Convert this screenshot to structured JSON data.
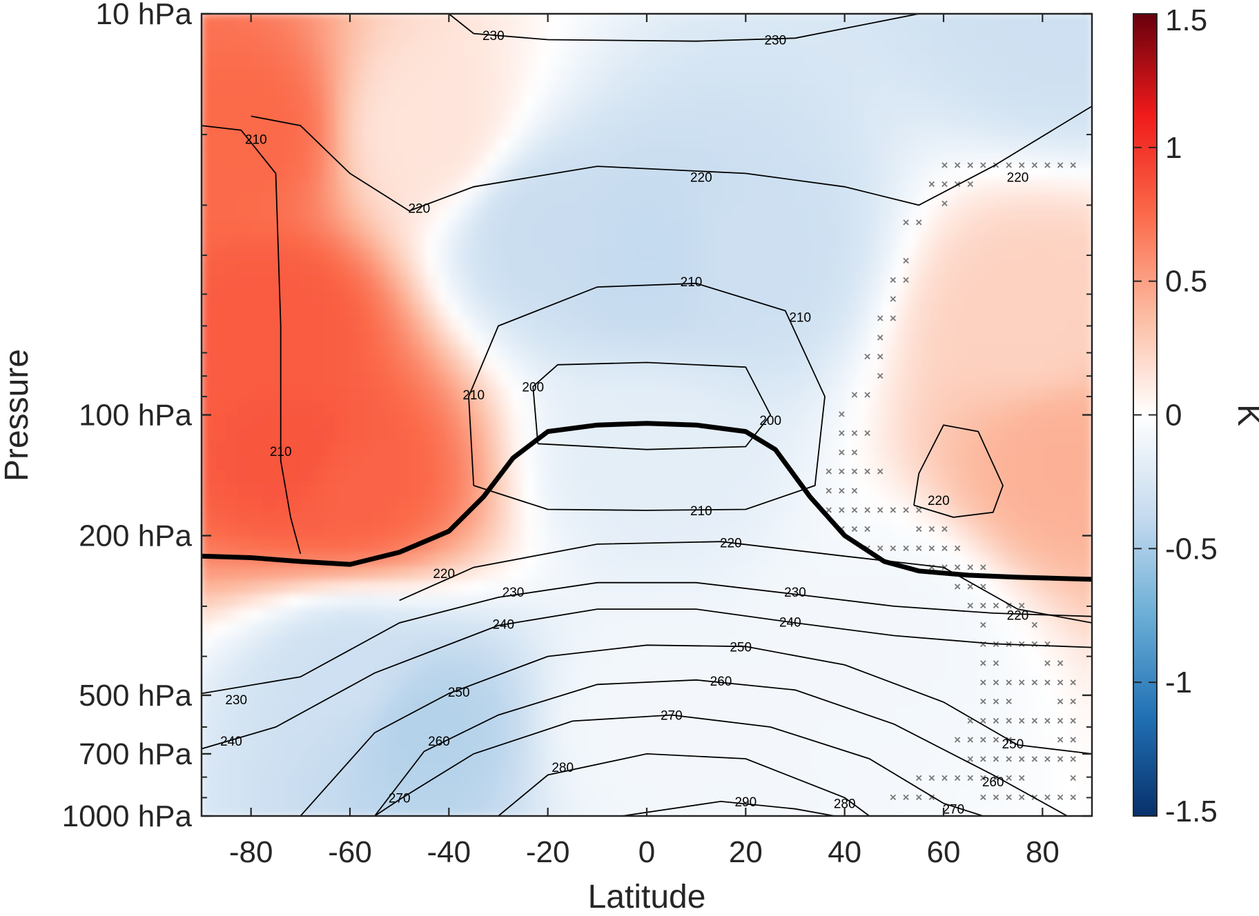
{
  "chart_data": {
    "type": "heatmap",
    "title": "",
    "xlabel": "Latitude",
    "ylabel": "Pressure",
    "colorbar_label": "K",
    "xlim": [
      -90,
      90
    ],
    "ylim_hPa": [
      1000,
      10
    ],
    "y_scale": "log",
    "x_ticks": [
      -80,
      -60,
      -40,
      -20,
      0,
      20,
      40,
      60,
      80
    ],
    "x_tick_labels": [
      "-80",
      "-60",
      "-40",
      "-20",
      "0",
      "20",
      "40",
      "60",
      "80"
    ],
    "y_ticks": [
      10,
      100,
      200,
      500,
      700,
      1000
    ],
    "y_tick_labels": [
      "10 hPa",
      "100 hPa",
      "200 hPa",
      "500 hPa",
      "700 hPa",
      "1000 hPa"
    ],
    "color_range": [
      -1.5,
      1.5
    ],
    "colorbar_ticks": [
      1.5,
      1,
      0.5,
      0,
      -0.5,
      -1,
      -1.5
    ],
    "colorbar_tick_labels": [
      "1.5",
      "1",
      "0.5",
      "0",
      "-0.5",
      "-1",
      "-1.5"
    ],
    "colormap": [
      "#08306b",
      "#2171b5",
      "#6baed6",
      "#c6dbef",
      "#ffffff",
      "#fcbba1",
      "#fb6a4a",
      "#ef1a1a",
      "#67000d"
    ],
    "anomaly_field": {
      "description_of_features": "",
      "features": [
        {
          "lat": -75,
          "p": 60,
          "value": 0.82
        },
        {
          "lat": -70,
          "p": 130,
          "value": 0.85
        },
        {
          "lat": -60,
          "p": 150,
          "value": 0.78
        },
        {
          "lat": -80,
          "p": 20,
          "value": 0.75
        },
        {
          "lat": -45,
          "p": 20,
          "value": 0.15
        },
        {
          "lat": 0,
          "p": 40,
          "value": -0.38
        },
        {
          "lat": -20,
          "p": 35,
          "value": -0.35
        },
        {
          "lat": 20,
          "p": 40,
          "value": -0.33
        },
        {
          "lat": 0,
          "p": 130,
          "value": -0.18
        },
        {
          "lat": -45,
          "p": 600,
          "value": -0.45
        },
        {
          "lat": -60,
          "p": 450,
          "value": -0.32
        },
        {
          "lat": 85,
          "p": 130,
          "value": 0.42
        },
        {
          "lat": 78,
          "p": 60,
          "value": 0.25
        },
        {
          "lat": 85,
          "p": 10,
          "value": -0.32
        },
        {
          "lat": 0,
          "p": 600,
          "value": -0.08
        },
        {
          "lat": 50,
          "p": 350,
          "value": -0.08
        }
      ]
    },
    "temperature_contours": [
      {
        "level": 200,
        "label": "200"
      },
      {
        "level": 210,
        "label": "210"
      },
      {
        "level": 220,
        "label": "220"
      },
      {
        "level": 230,
        "label": "230"
      },
      {
        "level": 240,
        "label": "240"
      },
      {
        "level": 250,
        "label": "250"
      },
      {
        "level": 260,
        "label": "260"
      },
      {
        "level": 270,
        "label": "270"
      },
      {
        "level": 280,
        "label": "280"
      },
      {
        "level": 290,
        "label": "290"
      }
    ],
    "contour_label_marks": [
      {
        "t": "230",
        "lat": -31,
        "p": 11.3
      },
      {
        "t": "230",
        "lat": 26,
        "p": 11.6
      },
      {
        "t": "210",
        "lat": -79,
        "p": 20.5
      },
      {
        "t": "220",
        "lat": -46,
        "p": 30.5
      },
      {
        "t": "220",
        "lat": 11,
        "p": 25.5
      },
      {
        "t": "220",
        "lat": 75,
        "p": 25.5
      },
      {
        "t": "210",
        "lat": 9,
        "p": 46.5
      },
      {
        "t": "210",
        "lat": 31,
        "p": 57
      },
      {
        "t": "210",
        "lat": -35,
        "p": 89
      },
      {
        "t": "200",
        "lat": -23,
        "p": 85
      },
      {
        "t": "200",
        "lat": 25,
        "p": 103
      },
      {
        "t": "210",
        "lat": -74,
        "p": 123
      },
      {
        "t": "220",
        "lat": 59,
        "p": 163
      },
      {
        "t": "210",
        "lat": 11,
        "p": 173
      },
      {
        "t": "220",
        "lat": 17,
        "p": 208
      },
      {
        "t": "220",
        "lat": -41,
        "p": 248
      },
      {
        "t": "230",
        "lat": -27,
        "p": 276
      },
      {
        "t": "230",
        "lat": 30,
        "p": 276
      },
      {
        "t": "220",
        "lat": 75,
        "p": 315
      },
      {
        "t": "240",
        "lat": -29,
        "p": 332
      },
      {
        "t": "240",
        "lat": 29,
        "p": 328
      },
      {
        "t": "250",
        "lat": 19,
        "p": 378
      },
      {
        "t": "230",
        "lat": -83,
        "p": 512
      },
      {
        "t": "250",
        "lat": -38,
        "p": 490
      },
      {
        "t": "260",
        "lat": 15,
        "p": 460
      },
      {
        "t": "270",
        "lat": 5,
        "p": 560
      },
      {
        "t": "240",
        "lat": -84,
        "p": 650
      },
      {
        "t": "260",
        "lat": -42,
        "p": 650
      },
      {
        "t": "250",
        "lat": 74,
        "p": 660
      },
      {
        "t": "280",
        "lat": -17,
        "p": 755
      },
      {
        "t": "260",
        "lat": 70,
        "p": 820
      },
      {
        "t": "270",
        "lat": -50,
        "p": 900
      },
      {
        "t": "290",
        "lat": 20,
        "p": 920
      },
      {
        "t": "280",
        "lat": 40,
        "p": 930
      },
      {
        "t": "270",
        "lat": 62,
        "p": 960
      }
    ],
    "tropopause_line": {
      "label": "",
      "points": [
        {
          "lat": -90,
          "p": 225
        },
        {
          "lat": -80,
          "p": 227
        },
        {
          "lat": -70,
          "p": 232
        },
        {
          "lat": -60,
          "p": 236
        },
        {
          "lat": -50,
          "p": 220
        },
        {
          "lat": -40,
          "p": 195
        },
        {
          "lat": -33,
          "p": 160
        },
        {
          "lat": -27,
          "p": 128
        },
        {
          "lat": -20,
          "p": 110
        },
        {
          "lat": -10,
          "p": 106
        },
        {
          "lat": 0,
          "p": 105
        },
        {
          "lat": 10,
          "p": 106
        },
        {
          "lat": 20,
          "p": 110
        },
        {
          "lat": 26,
          "p": 122
        },
        {
          "lat": 33,
          "p": 160
        },
        {
          "lat": 40,
          "p": 200
        },
        {
          "lat": 48,
          "p": 232
        },
        {
          "lat": 55,
          "p": 245
        },
        {
          "lat": 65,
          "p": 251
        },
        {
          "lat": 75,
          "p": 254
        },
        {
          "lat": 85,
          "p": 256
        },
        {
          "lat": 90,
          "p": 257
        }
      ]
    },
    "significance_marker": "×"
  }
}
